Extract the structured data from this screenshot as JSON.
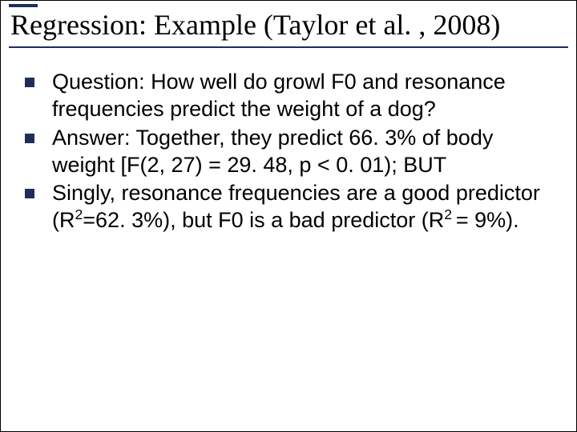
{
  "slide": {
    "title": "Regression:  Example (Taylor et al. , 2008)",
    "title_font_family": "Times New Roman",
    "title_font_size": 36,
    "title_color": "#000000",
    "accent_color": "#1f2e5a",
    "background_color": "#ffffff",
    "bullet_marker_size": 12,
    "body_font_size": 27,
    "body_font_family": "Arial",
    "bullets": [
      {
        "text": "Question:  How well do growl F0 and resonance frequencies predict the weight of a dog?"
      },
      {
        "text_pre": "Answer:  Together, they predict 66. 3% of body weight [F(2, 27) = 29. 48, p < 0. 01); BUT"
      },
      {
        "text_a": "Singly, resonance frequencies are a good predictor (R",
        "sup1": "2",
        "text_b": "=62. 3%), but F0 is a bad predictor (R",
        "sup2": "2 ",
        "text_c": "= 9%)."
      }
    ]
  }
}
